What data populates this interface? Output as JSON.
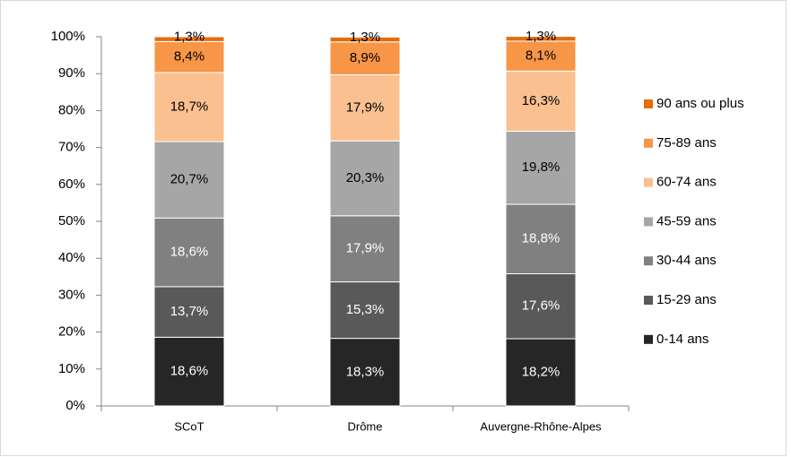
{
  "chart_data": {
    "type": "stacked_bar",
    "categories": [
      "SCoT",
      "Drôme",
      "Auvergne-Rhône-Alpes"
    ],
    "series": [
      {
        "name": "0-14 ans",
        "color": "#262626",
        "label_color": "#ffffff",
        "values": [
          18.6,
          18.3,
          18.2
        ],
        "value_labels": [
          "18,6%",
          "18,3%",
          "18,2%"
        ]
      },
      {
        "name": "15-29 ans",
        "color": "#595959",
        "label_color": "#ffffff",
        "values": [
          13.7,
          15.3,
          17.6
        ],
        "value_labels": [
          "13,7%",
          "15,3%",
          "17,6%"
        ]
      },
      {
        "name": "30-44 ans",
        "color": "#808080",
        "label_color": "#ffffff",
        "values": [
          18.6,
          17.9,
          18.8
        ],
        "value_labels": [
          "18,6%",
          "17,9%",
          "18,8%"
        ]
      },
      {
        "name": "45-59 ans",
        "color": "#a6a6a6",
        "label_color": "#000000",
        "values": [
          20.7,
          20.3,
          19.8
        ],
        "value_labels": [
          "20,7%",
          "20,3%",
          "19,8%"
        ]
      },
      {
        "name": "60-74 ans",
        "color": "#fac090",
        "label_color": "#000000",
        "values": [
          18.7,
          17.9,
          16.3
        ],
        "value_labels": [
          "18,7%",
          "17,9%",
          "16,3%"
        ]
      },
      {
        "name": "75-89 ans",
        "color": "#f79646",
        "label_color": "#000000",
        "values": [
          8.4,
          8.9,
          8.1
        ],
        "value_labels": [
          "8,4%",
          "8,9%",
          "8,1%"
        ]
      },
      {
        "name": "90 ans ou plus",
        "color": "#e46c0a",
        "label_color": "#000000",
        "values": [
          1.3,
          1.3,
          1.3
        ],
        "value_labels": [
          "1,3%",
          "1,3%",
          "1,3%"
        ]
      }
    ],
    "ylim": [
      0,
      100
    ],
    "yticks": [
      {
        "value": 0,
        "label": "0%"
      },
      {
        "value": 10,
        "label": "10%"
      },
      {
        "value": 20,
        "label": "20%"
      },
      {
        "value": 30,
        "label": "30%"
      },
      {
        "value": 40,
        "label": "40%"
      },
      {
        "value": 50,
        "label": "50%"
      },
      {
        "value": 60,
        "label": "60%"
      },
      {
        "value": 70,
        "label": "70%"
      },
      {
        "value": 80,
        "label": "80%"
      },
      {
        "value": 90,
        "label": "90%"
      },
      {
        "value": 100,
        "label": "100%"
      }
    ],
    "legend": "right"
  }
}
